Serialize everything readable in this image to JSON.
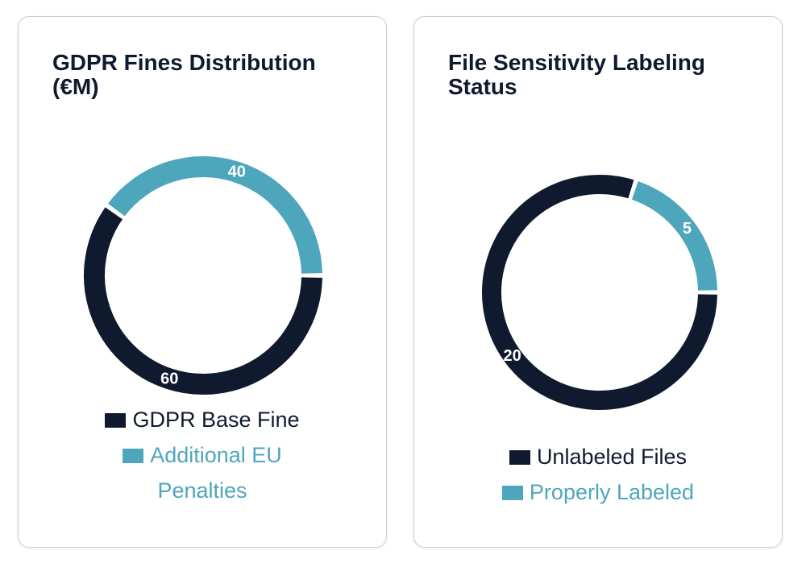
{
  "chart_data": [
    {
      "type": "pie",
      "title": "GDPR Fines Distribution (€M)",
      "categories": [
        "GDPR Base Fine",
        "Additional EU Penalties"
      ],
      "values": [
        60,
        40
      ],
      "colors": [
        "#101a2e",
        "#4ea6bc"
      ],
      "donut": true,
      "legend": "bottom"
    },
    {
      "type": "pie",
      "title": "File Sensitivity Labeling Status",
      "categories": [
        "Unlabeled Files",
        "Properly Labeled"
      ],
      "values": [
        20,
        5
      ],
      "colors": [
        "#101a2e",
        "#4ea6bc"
      ],
      "donut": true,
      "legend": "bottom"
    }
  ]
}
